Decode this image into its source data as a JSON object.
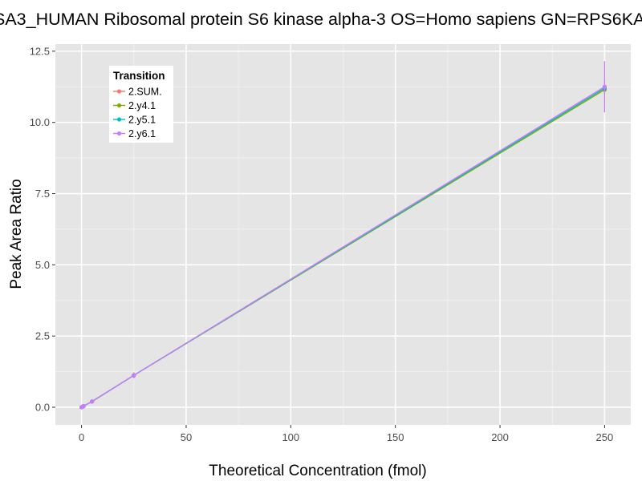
{
  "chart_data": {
    "type": "line",
    "title": "SA3_HUMAN Ribosomal protein S6 kinase alpha-3 OS=Homo sapiens GN=RPS6KA",
    "xlabel": "Theoretical Concentration (fmol)",
    "ylabel": "Peak Area Ratio",
    "xlim": [
      -12.5,
      262.5
    ],
    "ylim": [
      -0.62,
      12.75
    ],
    "x_ticks": [
      0,
      50,
      100,
      150,
      200,
      250
    ],
    "x_tick_labels": [
      "0",
      "50",
      "100",
      "150",
      "200",
      "250"
    ],
    "y_ticks": [
      0,
      2.5,
      5,
      7.5,
      10,
      12.5
    ],
    "y_tick_labels": [
      "0.0",
      "2.5",
      "5.0",
      "7.5",
      "10.0",
      "12.5"
    ],
    "grid": true,
    "legend": {
      "title": "Transition",
      "position": "top-left"
    },
    "x": [
      0,
      0.5,
      1,
      5,
      25,
      250
    ],
    "series": [
      {
        "name": "2.SUM.",
        "color": "#F8766D",
        "values": [
          0.0,
          0.02,
          0.04,
          0.2,
          1.12,
          11.25
        ],
        "err": [
          null,
          null,
          null,
          0.03,
          0.1,
          0.25
        ]
      },
      {
        "name": "2.y4.1",
        "color": "#7CAE00",
        "values": [
          0.0,
          0.02,
          0.04,
          0.2,
          1.12,
          11.15
        ],
        "err": [
          null,
          null,
          null,
          null,
          null,
          null
        ]
      },
      {
        "name": "2.y5.1",
        "color": "#00BFC4",
        "values": [
          0.0,
          0.02,
          0.04,
          0.2,
          1.12,
          11.2
        ],
        "err": [
          null,
          null,
          null,
          null,
          null,
          null
        ]
      },
      {
        "name": "2.y6.1",
        "color": "#C77CFF",
        "values": [
          0.0,
          0.02,
          0.04,
          0.2,
          1.12,
          11.25
        ],
        "err": [
          null,
          null,
          null,
          null,
          null,
          0.9
        ]
      }
    ]
  }
}
